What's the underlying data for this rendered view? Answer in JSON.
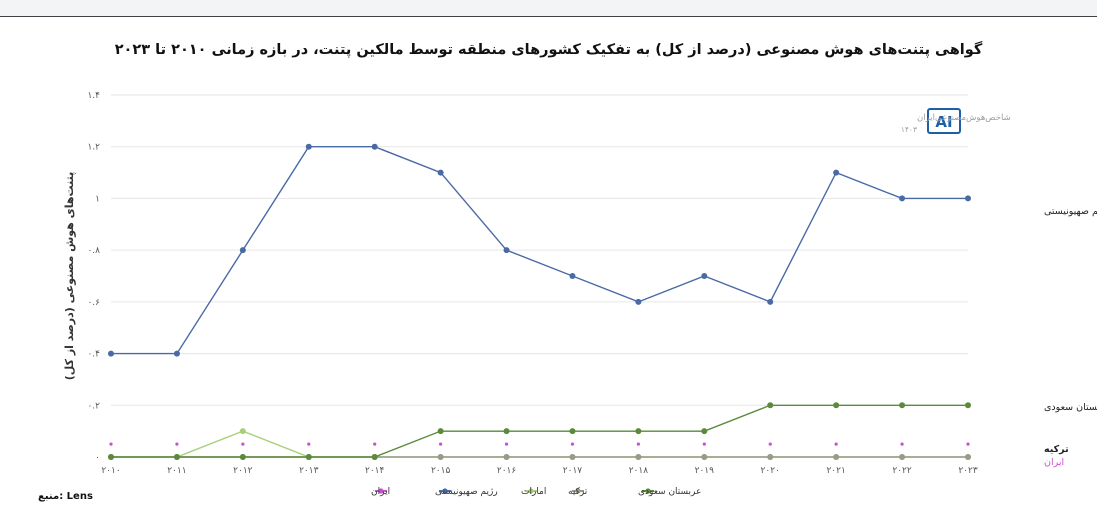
{
  "chart_data": {
    "type": "line",
    "title": "گواهی پتنت‌های هوش مصنوعی (درصد از کل) به تفکیک کشورهای منطقه توسط مالکین پتنت، در بازه زمانی ۲۰۱۰ تا ۲۰۲۳",
    "ylabel": "پتنت‌های هوش مصنوعی (درصد از کل)",
    "xlabel": "",
    "x": [
      "۲۰۱۰",
      "۲۰۱۱",
      "۲۰۱۲",
      "۲۰۱۳",
      "۲۰۱۴",
      "۲۰۱۵",
      "۲۰۱۶",
      "۲۰۱۷",
      "۲۰۱۸",
      "۲۰۱۹",
      "۲۰۲۰",
      "۲۰۲۱",
      "۲۰۲۲",
      "۲۰۲۳"
    ],
    "ylim": [
      0,
      1.4
    ],
    "yticks": [
      {
        "value": 0,
        "label": "۰"
      },
      {
        "value": 0.2,
        "label": "۰.۲"
      },
      {
        "value": 0.4,
        "label": "۰.۴"
      },
      {
        "value": 0.6,
        "label": "۰.۶"
      },
      {
        "value": 0.8,
        "label": "۰.۸"
      },
      {
        "value": 1.0,
        "label": "۱"
      },
      {
        "value": 1.2,
        "label": "۱.۲"
      },
      {
        "value": 1.4,
        "label": "۱.۴"
      }
    ],
    "grid": true,
    "legend_position": "bottom",
    "series": [
      {
        "name": "رژیم صهیونیستی",
        "color": "#4a6aa5",
        "end_label": "رژیم صهیونیستی",
        "values": [
          0.4,
          0.4,
          0.8,
          1.2,
          1.2,
          1.1,
          0.8,
          0.7,
          0.6,
          0.7,
          0.6,
          1.1,
          1.0,
          1.0
        ]
      },
      {
        "name": "عربستان سعودی",
        "color": "#5a8a3a",
        "end_label": "عربستان سعودی",
        "values": [
          0,
          0,
          0,
          0,
          0,
          0.1,
          0.1,
          0.1,
          0.1,
          0.1,
          0.2,
          0.2,
          0.2,
          0.2
        ]
      },
      {
        "name": "امارات",
        "color": "#a9cf7a",
        "values": [
          0,
          0,
          0.1,
          0,
          0,
          0,
          0,
          0,
          0,
          0,
          0,
          0,
          0,
          0
        ]
      },
      {
        "name": "ترکیه",
        "color": "#9a9a8a",
        "end_label": "ترکیه",
        "values": [
          0,
          0,
          0,
          0,
          0,
          0,
          0,
          0,
          0,
          0,
          0,
          0,
          0,
          0
        ]
      },
      {
        "name": "ایران",
        "color": "#c94fd1",
        "end_label": "ایران",
        "dotted": true,
        "values": [
          0.05,
          0.05,
          0.05,
          0.05,
          0.05,
          0.05,
          0.05,
          0.05,
          0.05,
          0.05,
          0.05,
          0.05,
          0.05,
          0.05
        ]
      }
    ],
    "legend_order": [
      "ایران",
      "رژیم صهیونیستی",
      "امارات",
      "ترکیه",
      "عربستان سعودی"
    ]
  },
  "watermark": {
    "name": "شاخص‌هوش‌مصنوعی‌ایران",
    "year": "۱۴۰۳",
    "logo_text": "AI"
  },
  "source": "منبع: Lens"
}
